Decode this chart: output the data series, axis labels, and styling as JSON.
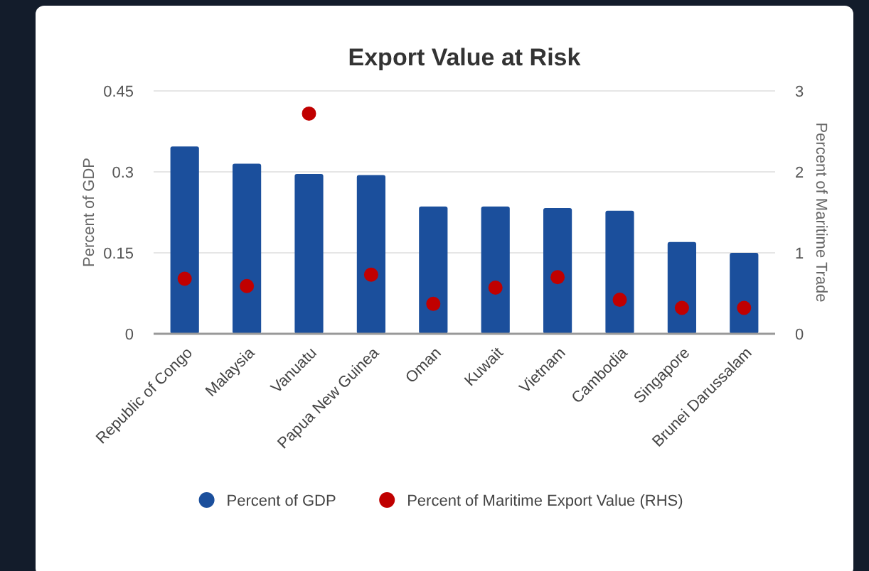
{
  "chart_data": {
    "type": "bar",
    "title": "Export Value at Risk",
    "ylabel": "Percent of GDP",
    "y2label": "Percent of Maritime Trade",
    "categories": [
      "Republic of Congo",
      "Malaysia",
      "Vanuatu",
      "Papua New Guinea",
      "Oman",
      "Kuwait",
      "Vietnam",
      "Cambodia",
      "Singapore",
      "Brunei Darussalam"
    ],
    "series": [
      {
        "name": "Percent of GDP",
        "color": "#1b4f9c",
        "values": [
          0.347,
          0.315,
          0.296,
          0.294,
          0.236,
          0.236,
          0.233,
          0.228,
          0.17,
          0.15
        ]
      },
      {
        "name": "Percent of Maritime Export Value (RHS)",
        "type": "scatter",
        "axis": "y2",
        "color": "#c00000",
        "values": [
          0.68,
          0.59,
          2.72,
          0.73,
          0.37,
          0.57,
          0.7,
          0.42,
          0.32,
          0.32
        ]
      }
    ],
    "ylim": [
      0,
      0.45
    ],
    "yticks": [
      0,
      0.15,
      0.3,
      0.45
    ],
    "y2lim": [
      0,
      3
    ],
    "y2ticks": [
      0,
      1,
      2,
      3
    ],
    "grid": "y",
    "legend": "bottom",
    "marker": "circle"
  }
}
